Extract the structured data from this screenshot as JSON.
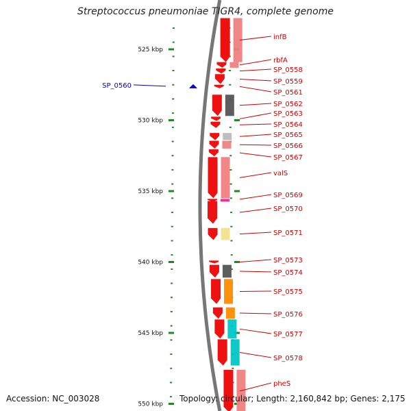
{
  "title": "Streptococcus pneumoniae TIGR4, complete genome",
  "footer": {
    "accession": "Accession: NC_003028",
    "summary": "Topology: circular; Length: 2,160,842 bp; Genes: 2,175"
  },
  "colors": {
    "gene": "#ee1111",
    "label": "#cc0000",
    "highlight_label": "#0000cc",
    "ruler_tick": "#228822",
    "backbone": "#777777",
    "cog_pink": "#f08080",
    "cog_gray": "#555555",
    "cog_light_gray": "#bbbbbb",
    "cog_orange": "#ff8c00",
    "cog_magenta": "#ee2299",
    "cog_yellow": "#f5e08a",
    "cog_cyan": "#00c6c6"
  },
  "ruler": [
    {
      "kbp": 525,
      "label": "525 kbp"
    },
    {
      "kbp": 530,
      "label": "530 kbp"
    },
    {
      "kbp": 535,
      "label": "535 kbp"
    },
    {
      "kbp": 540,
      "label": "540 kbp"
    },
    {
      "kbp": 545,
      "label": "545 kbp"
    },
    {
      "kbp": 550,
      "label": "550 kbp"
    }
  ],
  "genes": [
    {
      "name": "infB",
      "start": 522.8,
      "end": 525.9,
      "cog": "cog_pink"
    },
    {
      "name": "rbfA",
      "start": 525.9,
      "end": 526.3,
      "cog": "cog_pink"
    },
    {
      "name": "SP_0558",
      "start": 526.35,
      "end": 526.7,
      "cog": ""
    },
    {
      "name": "SP_0559",
      "start": 526.75,
      "end": 527.45,
      "cog": ""
    },
    {
      "name": "SP_0561",
      "start": 527.5,
      "end": 527.75,
      "cog": ""
    },
    {
      "name": "SP_0562",
      "start": 528.2,
      "end": 529.7,
      "cog": "cog_gray"
    },
    {
      "name": "SP_0563",
      "start": 529.75,
      "end": 530.05,
      "cog": ""
    },
    {
      "name": "SP_0564",
      "start": 530.1,
      "end": 530.55,
      "cog": ""
    },
    {
      "name": "SP_0565",
      "start": 530.9,
      "end": 531.4,
      "cog": "cog_light_gray"
    },
    {
      "name": "SP_0566",
      "start": 531.45,
      "end": 532.0,
      "cog": "cog_pink"
    },
    {
      "name": "SP_0567",
      "start": 532.05,
      "end": 532.55,
      "cog": ""
    },
    {
      "name": "valS",
      "start": 532.6,
      "end": 535.5,
      "cog": "cog_pink"
    },
    {
      "name": "SP_0569",
      "start": 535.55,
      "end": 535.6,
      "cog": "cog_magenta"
    },
    {
      "name": "SP_0570",
      "start": 535.7,
      "end": 537.3,
      "cog": ""
    },
    {
      "name": "SP_0571",
      "start": 537.6,
      "end": 538.45,
      "cog": "cog_yellow"
    },
    {
      "name": "SP_0573",
      "start": 539.9,
      "end": 540.1,
      "cog": ""
    },
    {
      "name": "SP_0574",
      "start": 540.2,
      "end": 541.1,
      "cog": "cog_gray"
    },
    {
      "name": "SP_0575",
      "start": 541.2,
      "end": 542.95,
      "cog": "cog_orange"
    },
    {
      "name": "SP_0576",
      "start": 543.2,
      "end": 544.0,
      "cog": "cog_orange"
    },
    {
      "name": "SP_0577",
      "start": 544.05,
      "end": 545.4,
      "cog": "cog_cyan"
    },
    {
      "name": "SP_0578",
      "start": 545.45,
      "end": 547.3,
      "cog": "cog_cyan"
    },
    {
      "name": "pheS",
      "start": 547.6,
      "end": 550.6,
      "cog": "cog_pink"
    }
  ],
  "highlight": {
    "name": "SP_0560",
    "kbp": 527.6
  }
}
